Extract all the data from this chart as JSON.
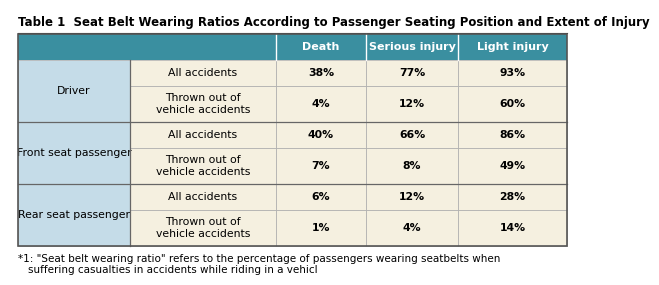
{
  "title": "Table 1  Seat Belt Wearing Ratios According to Passenger Seating Position and Extent of Injury",
  "col_headers": [
    "Death",
    "Serious injury",
    "Light injury"
  ],
  "header_bg": "#3a8fa0",
  "header_text_color": "#ffffff",
  "row_groups": [
    {
      "label": "Driver",
      "rows": [
        {
          "sub": "All accidents",
          "death": "38%",
          "serious": "77%",
          "light": "93%"
        },
        {
          "sub": "Thrown out of\nvehicle accidents",
          "death": "4%",
          "serious": "12%",
          "light": "60%"
        }
      ]
    },
    {
      "label": "Front seat passenger",
      "rows": [
        {
          "sub": "All accidents",
          "death": "40%",
          "serious": "66%",
          "light": "86%"
        },
        {
          "sub": "Thrown out of\nvehicle accidents",
          "death": "7%",
          "serious": "8%",
          "light": "49%"
        }
      ]
    },
    {
      "label": "Rear seat passenger",
      "rows": [
        {
          "sub": "All accidents",
          "death": "6%",
          "serious": "12%",
          "light": "28%"
        },
        {
          "sub": "Thrown out of\nvehicle accidents",
          "death": "1%",
          "serious": "4%",
          "light": "14%"
        }
      ]
    }
  ],
  "label_col_bg": "#c5dce8",
  "sub_col_bg": "#f5f0e0",
  "data_col_bg": "#f5f0e0",
  "outer_border": "#555555",
  "inner_border": "#aaaaaa",
  "group_border": "#666666",
  "footnote": "*1: \"Seat belt wearing ratio\" refers to the percentage of passengers wearing seatbelts when\n      suffering casualties in accidents while riding in a vehicl",
  "title_fontsize": 8.5,
  "header_fontsize": 8,
  "cell_fontsize": 7.8,
  "footnote_fontsize": 7.5
}
